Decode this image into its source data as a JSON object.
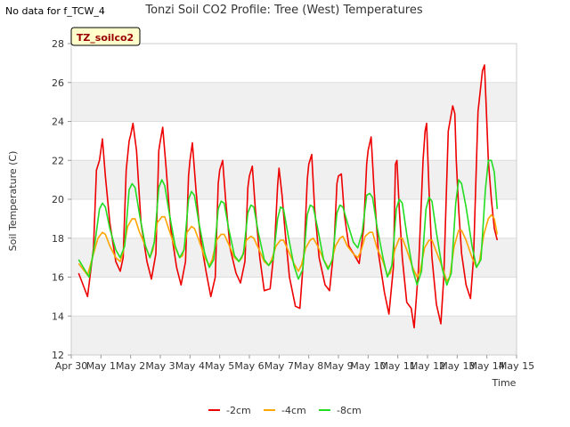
{
  "corner_note": "No data for f_TCW_4",
  "colors": {
    "-2cm": "#ee0000",
    "-4cm": "#ffa500",
    "-8cm": "#22dd22"
  },
  "chart_data": {
    "type": "line",
    "title": "Tonzi Soil CO2 Profile: Tree (West) Temperatures",
    "xlabel": "Time",
    "ylabel": "Soil Temperature (C)",
    "badge": "TZ_soilco2",
    "xlim": [
      0,
      15
    ],
    "ylim": [
      12,
      28
    ],
    "x_ticks": [
      0,
      1,
      2,
      3,
      4,
      5,
      6,
      7,
      8,
      9,
      10,
      11,
      12,
      13,
      14,
      15
    ],
    "x_tick_labels": [
      "Apr 30",
      "May 1",
      "May 2",
      "May 3",
      "May 4",
      "May 5",
      "May 6",
      "May 7",
      "May 8",
      "May 9",
      "May 10",
      "May 11",
      "May 12",
      "May 13",
      "May 14",
      "May 15"
    ],
    "y_ticks": [
      12,
      14,
      16,
      18,
      20,
      22,
      24,
      26,
      28
    ],
    "grid": true,
    "legend_position": "bottom",
    "series": [
      {
        "name": "-2cm",
        "x": [
          0.25,
          0.55,
          0.75,
          0.85,
          0.95,
          1.05,
          1.15,
          1.3,
          1.5,
          1.65,
          1.75,
          1.85,
          1.95,
          2.0,
          2.08,
          2.2,
          2.35,
          2.55,
          2.7,
          2.85,
          2.95,
          3.0,
          3.08,
          3.2,
          3.35,
          3.55,
          3.7,
          3.85,
          3.95,
          4.0,
          4.08,
          4.2,
          4.35,
          4.55,
          4.7,
          4.85,
          4.95,
          5.0,
          5.1,
          5.2,
          5.35,
          5.55,
          5.7,
          5.85,
          5.95,
          6.0,
          6.1,
          6.2,
          6.35,
          6.5,
          6.7,
          6.85,
          6.95,
          7.0,
          7.1,
          7.2,
          7.35,
          7.55,
          7.7,
          7.85,
          7.95,
          8.0,
          8.1,
          8.2,
          8.35,
          8.55,
          8.7,
          8.85,
          8.95,
          9.0,
          9.1,
          9.2,
          9.35,
          9.55,
          9.7,
          9.85,
          9.95,
          10.0,
          10.1,
          10.2,
          10.35,
          10.55,
          10.7,
          10.85,
          10.92,
          10.97,
          11.05,
          11.15,
          11.3,
          11.45,
          11.55,
          11.7,
          11.85,
          11.92,
          11.97,
          12.05,
          12.15,
          12.3,
          12.45,
          12.55,
          12.7,
          12.85,
          12.92,
          12.97,
          13.05,
          13.15,
          13.3,
          13.45,
          13.55,
          13.7,
          13.85,
          13.92,
          13.97,
          14.05,
          14.15,
          14.25,
          14.35
        ],
        "y": [
          16.2,
          15.0,
          17.5,
          21.5,
          22.0,
          23.1,
          21.2,
          18.8,
          16.8,
          16.3,
          17.0,
          21.5,
          23.0,
          23.3,
          23.9,
          22.5,
          18.8,
          16.8,
          15.9,
          17.2,
          22.5,
          23.0,
          23.7,
          21.5,
          18.5,
          16.5,
          15.6,
          16.8,
          21.2,
          22.0,
          22.9,
          20.5,
          18.0,
          16.2,
          15.0,
          16.0,
          20.8,
          21.5,
          22.0,
          20.0,
          17.5,
          16.2,
          15.7,
          16.8,
          20.6,
          21.2,
          21.7,
          19.5,
          17.0,
          15.3,
          15.4,
          17.6,
          20.7,
          21.6,
          20.2,
          18.4,
          16.0,
          14.5,
          14.4,
          17.5,
          21.0,
          21.8,
          22.3,
          19.5,
          17.0,
          15.6,
          15.3,
          17.5,
          20.8,
          21.2,
          21.3,
          19.2,
          17.6,
          17.1,
          16.7,
          18.5,
          21.8,
          22.5,
          23.2,
          20.5,
          17.2,
          15.2,
          14.1,
          16.5,
          21.8,
          22.0,
          19.5,
          17.0,
          14.7,
          14.4,
          13.4,
          16.5,
          22.0,
          23.5,
          23.9,
          20.5,
          17.0,
          14.6,
          13.6,
          16.0,
          23.5,
          24.8,
          24.4,
          22.0,
          19.5,
          17.2,
          15.6,
          14.9,
          17.0,
          24.5,
          26.6,
          26.9,
          25.0,
          22.0,
          20.0,
          18.5,
          17.9
        ]
      },
      {
        "name": "-4cm",
        "x": [
          0.25,
          0.55,
          0.75,
          0.9,
          1.05,
          1.15,
          1.3,
          1.5,
          1.65,
          1.75,
          1.9,
          2.05,
          2.15,
          2.3,
          2.5,
          2.65,
          2.75,
          2.9,
          3.05,
          3.15,
          3.3,
          3.5,
          3.65,
          3.75,
          3.9,
          4.05,
          4.15,
          4.3,
          4.5,
          4.65,
          4.75,
          4.9,
          5.05,
          5.15,
          5.3,
          5.5,
          5.65,
          5.75,
          5.9,
          6.05,
          6.15,
          6.3,
          6.5,
          6.65,
          6.75,
          6.9,
          7.05,
          7.15,
          7.3,
          7.5,
          7.65,
          7.75,
          7.9,
          8.05,
          8.15,
          8.3,
          8.5,
          8.65,
          8.75,
          8.9,
          9.05,
          9.15,
          9.3,
          9.5,
          9.65,
          9.75,
          9.9,
          10.05,
          10.15,
          10.3,
          10.5,
          10.65,
          10.75,
          10.9,
          11.05,
          11.15,
          11.3,
          11.5,
          11.65,
          11.75,
          11.9,
          12.05,
          12.15,
          12.3,
          12.5,
          12.65,
          12.75,
          12.9,
          13.05,
          13.15,
          13.3,
          13.5,
          13.65,
          13.75,
          13.9,
          14.05,
          14.15,
          14.25,
          14.35
        ],
        "y": [
          16.7,
          16.1,
          17.2,
          18.0,
          18.3,
          18.2,
          17.6,
          17.0,
          16.8,
          17.3,
          18.6,
          19.0,
          19.0,
          18.3,
          17.6,
          17.0,
          17.4,
          18.8,
          19.1,
          19.1,
          18.4,
          17.5,
          17.0,
          17.1,
          18.3,
          18.6,
          18.5,
          17.9,
          17.0,
          16.6,
          16.9,
          17.9,
          18.2,
          18.2,
          17.7,
          17.0,
          16.8,
          17.0,
          17.9,
          18.1,
          18.0,
          17.5,
          16.8,
          16.6,
          16.9,
          17.6,
          17.9,
          17.9,
          17.4,
          16.7,
          16.3,
          16.6,
          17.5,
          17.9,
          18.0,
          17.6,
          16.9,
          16.5,
          16.7,
          17.6,
          18.0,
          18.1,
          17.6,
          17.2,
          17.0,
          17.3,
          18.1,
          18.3,
          18.3,
          17.5,
          16.8,
          16.1,
          16.2,
          17.4,
          18.0,
          18.0,
          17.4,
          16.5,
          16.0,
          16.3,
          17.5,
          17.9,
          17.9,
          17.3,
          16.5,
          15.8,
          16.0,
          17.6,
          18.4,
          18.4,
          17.9,
          17.0,
          16.5,
          16.8,
          18.2,
          19.0,
          19.2,
          19.0,
          18.2
        ]
      },
      {
        "name": "-8cm",
        "x": [
          0.25,
          0.6,
          0.8,
          0.95,
          1.05,
          1.15,
          1.3,
          1.5,
          1.65,
          1.8,
          1.95,
          2.05,
          2.15,
          2.3,
          2.5,
          2.65,
          2.8,
          2.95,
          3.05,
          3.15,
          3.3,
          3.5,
          3.65,
          3.8,
          3.95,
          4.05,
          4.15,
          4.3,
          4.5,
          4.65,
          4.8,
          4.95,
          5.05,
          5.15,
          5.3,
          5.5,
          5.65,
          5.8,
          5.95,
          6.05,
          6.15,
          6.3,
          6.5,
          6.65,
          6.8,
          6.95,
          7.05,
          7.15,
          7.3,
          7.5,
          7.65,
          7.8,
          7.95,
          8.05,
          8.15,
          8.3,
          8.5,
          8.65,
          8.8,
          8.95,
          9.05,
          9.15,
          9.3,
          9.5,
          9.65,
          9.8,
          9.95,
          10.05,
          10.15,
          10.3,
          10.5,
          10.65,
          10.8,
          10.95,
          11.05,
          11.15,
          11.3,
          11.5,
          11.65,
          11.8,
          11.95,
          12.05,
          12.15,
          12.3,
          12.5,
          12.65,
          12.8,
          12.95,
          13.05,
          13.15,
          13.3,
          13.5,
          13.65,
          13.8,
          13.95,
          14.05,
          14.15,
          14.25,
          14.35
        ],
        "y": [
          16.9,
          16.0,
          17.8,
          19.5,
          19.8,
          19.6,
          18.5,
          17.4,
          17.0,
          17.6,
          20.5,
          20.8,
          20.6,
          19.2,
          17.6,
          17.0,
          17.8,
          20.6,
          21.0,
          20.7,
          19.3,
          17.6,
          17.0,
          17.4,
          20.0,
          20.4,
          20.2,
          18.8,
          17.2,
          16.5,
          16.9,
          19.5,
          19.9,
          19.8,
          18.5,
          17.1,
          16.8,
          17.2,
          19.3,
          19.7,
          19.6,
          18.3,
          16.9,
          16.6,
          16.9,
          19.0,
          19.6,
          19.5,
          18.2,
          16.6,
          15.9,
          16.4,
          19.2,
          19.7,
          19.6,
          18.5,
          16.9,
          16.4,
          16.9,
          19.3,
          19.7,
          19.6,
          18.8,
          17.8,
          17.5,
          18.3,
          20.2,
          20.3,
          20.1,
          18.6,
          17.0,
          16.0,
          16.6,
          19.5,
          20.0,
          19.8,
          18.2,
          16.4,
          15.6,
          16.3,
          19.5,
          20.1,
          19.9,
          18.3,
          16.4,
          15.6,
          16.2,
          19.8,
          21.0,
          20.8,
          19.6,
          17.6,
          16.5,
          16.9,
          20.5,
          22.0,
          22.0,
          21.4,
          19.5
        ]
      }
    ]
  }
}
